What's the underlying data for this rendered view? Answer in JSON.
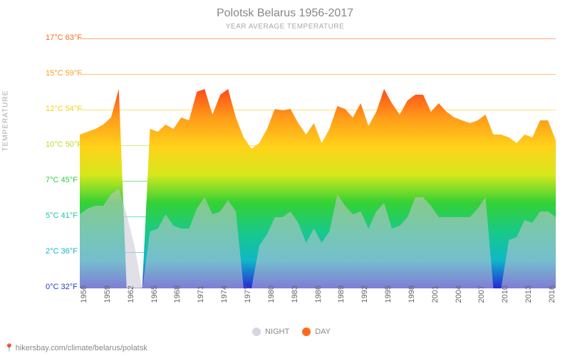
{
  "title": "Polotsk Belarus 1956-2017",
  "subtitle": "YEAR AVERAGE TEMPERATURE",
  "yaxis_label": "TEMPERATURE",
  "footer": "hikersbay.com/climate/belarus/polatsk",
  "colors": {
    "background": "#ffffff",
    "title": "#888888",
    "night": "#c8c4d4",
    "day": "#ff6a1a"
  },
  "legend": [
    {
      "label": "NIGHT",
      "swatch": "#d8d4e0"
    },
    {
      "label": "DAY",
      "swatch": "#ff6a1a"
    }
  ],
  "yticks": [
    {
      "c": 0,
      "f": 32,
      "color": "#1f3bd1",
      "frac": 0.0
    },
    {
      "c": 2,
      "f": 36,
      "color": "#0fb7c6",
      "frac": 0.143
    },
    {
      "c": 5,
      "f": 41,
      "color": "#18c9a0",
      "frac": 0.286
    },
    {
      "c": 7,
      "f": 45,
      "color": "#2ecb3f",
      "frac": 0.429
    },
    {
      "c": 10,
      "f": 50,
      "color": "#c6d81c",
      "frac": 0.571
    },
    {
      "c": 12,
      "f": 54,
      "color": "#f2d21a",
      "frac": 0.714
    },
    {
      "c": 15,
      "f": 59,
      "color": "#ff9a1a",
      "frac": 0.857
    },
    {
      "c": 17,
      "f": 63,
      "color": "#ff6a1a",
      "frac": 1.0
    }
  ],
  "xticks": [
    1956,
    1959,
    1962,
    1965,
    1968,
    1971,
    1974,
    1977,
    1980,
    1983,
    1986,
    1989,
    1992,
    1995,
    1998,
    2001,
    2004,
    2007,
    2010,
    2013,
    2016
  ],
  "xdomain": [
    1956,
    2017
  ],
  "ydomain_c": [
    0,
    17.5
  ],
  "gradient_stops": [
    {
      "off": 0.0,
      "c": "#2727d9"
    },
    {
      "off": 0.14,
      "c": "#0fb7c6"
    },
    {
      "off": 0.28,
      "c": "#18c98a"
    },
    {
      "off": 0.43,
      "c": "#35d135"
    },
    {
      "off": 0.57,
      "c": "#d6e81c"
    },
    {
      "off": 0.71,
      "c": "#ffd21a"
    },
    {
      "off": 0.86,
      "c": "#ff9a1a"
    },
    {
      "off": 1.0,
      "c": "#ff4a1a"
    }
  ],
  "series": {
    "day": {
      "x": [
        1956,
        1957,
        1958,
        1959,
        1960,
        1961,
        1962,
        1963,
        1964,
        1965,
        1966,
        1967,
        1968,
        1969,
        1970,
        1971,
        1972,
        1973,
        1974,
        1975,
        1976,
        1977,
        1978,
        1979,
        1980,
        1981,
        1982,
        1983,
        1984,
        1985,
        1986,
        1987,
        1988,
        1989,
        1990,
        1991,
        1992,
        1993,
        1994,
        1995,
        1996,
        1997,
        1998,
        1999,
        2000,
        2001,
        2002,
        2003,
        2004,
        2005,
        2006,
        2007,
        2008,
        2009,
        2010,
        2011,
        2012,
        2013,
        2014,
        2015,
        2016,
        2017
      ],
      "y": [
        10.8,
        11.0,
        11.2,
        11.5,
        12.0,
        14.0,
        0,
        0,
        0,
        11.2,
        11.0,
        11.5,
        11.2,
        12.0,
        11.8,
        13.8,
        14.0,
        12.2,
        13.6,
        14.0,
        12.0,
        10.6,
        9.8,
        10.2,
        11.2,
        12.6,
        12.5,
        12.6,
        11.6,
        10.8,
        11.6,
        10.2,
        11.2,
        12.8,
        12.6,
        12.0,
        13.0,
        11.4,
        12.4,
        14.0,
        13.0,
        12.2,
        13.2,
        13.6,
        13.6,
        12.4,
        13.0,
        12.4,
        12.0,
        11.8,
        11.6,
        11.8,
        12.2,
        10.8,
        10.8,
        10.6,
        10.2,
        10.8,
        10.6,
        11.8,
        11.8,
        10.4
      ]
    },
    "night": {
      "x": [
        1956,
        1957,
        1958,
        1959,
        1960,
        1961,
        1962,
        1963,
        1964,
        1965,
        1966,
        1967,
        1968,
        1969,
        1970,
        1971,
        1972,
        1973,
        1974,
        1975,
        1976,
        1977,
        1978,
        1979,
        1980,
        1981,
        1982,
        1983,
        1984,
        1985,
        1986,
        1987,
        1988,
        1989,
        1990,
        1991,
        1992,
        1993,
        1994,
        1995,
        1996,
        1997,
        1998,
        1999,
        2000,
        2001,
        2002,
        2003,
        2004,
        2005,
        2006,
        2007,
        2008,
        2009,
        2010,
        2011,
        2012,
        2013,
        2014,
        2015,
        2016,
        2017
      ],
      "y": [
        5.2,
        5.6,
        5.8,
        5.8,
        6.6,
        7.0,
        5.2,
        3.0,
        0,
        4.0,
        4.2,
        5.2,
        4.4,
        4.2,
        4.2,
        5.6,
        6.4,
        5.2,
        5.4,
        6.2,
        5.4,
        0,
        0,
        3.0,
        3.8,
        5.0,
        5.0,
        5.4,
        4.6,
        3.2,
        4.2,
        3.2,
        4.0,
        6.6,
        5.8,
        5.2,
        5.4,
        4.2,
        5.4,
        6.0,
        4.2,
        4.4,
        5.0,
        6.4,
        6.4,
        5.8,
        5.0,
        5.0,
        5.0,
        5.0,
        5.0,
        5.6,
        6.4,
        0,
        0,
        3.4,
        3.6,
        4.8,
        4.6,
        5.4,
        5.4,
        5.0
      ]
    }
  }
}
